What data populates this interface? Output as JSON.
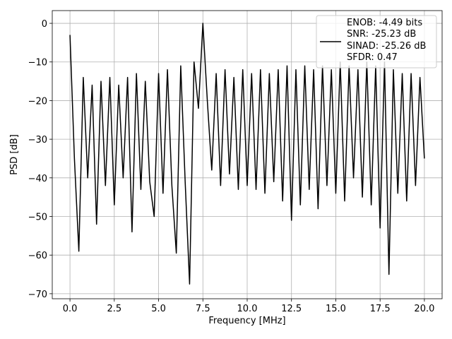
{
  "chart_data": {
    "type": "line",
    "xlabel": "Frequency [MHz]",
    "ylabel": "PSD [dB]",
    "xlim": [
      -1,
      21
    ],
    "ylim": [
      -71.3,
      3.3
    ],
    "xticks": [
      {
        "value": 0,
        "label": "0.0"
      },
      {
        "value": 2.5,
        "label": "2.5"
      },
      {
        "value": 5,
        "label": "5.0"
      },
      {
        "value": 7.5,
        "label": "7.5"
      },
      {
        "value": 10,
        "label": "10.0"
      },
      {
        "value": 12.5,
        "label": "12.5"
      },
      {
        "value": 15,
        "label": "15.0"
      },
      {
        "value": 17.5,
        "label": "17.5"
      },
      {
        "value": 20,
        "label": "20.0"
      }
    ],
    "yticks": [
      0,
      {
        "value": -10,
        "label": "−10"
      },
      {
        "value": -20,
        "label": "−20"
      },
      {
        "value": -30,
        "label": "−30"
      },
      {
        "value": -40,
        "label": "−40"
      },
      {
        "value": -50,
        "label": "−50"
      },
      {
        "value": -60,
        "label": "−60"
      },
      {
        "value": -70,
        "label": "−70"
      }
    ],
    "grid": true,
    "legend": "upper right",
    "x": [
      0,
      0.25,
      0.5,
      0.75,
      1,
      1.25,
      1.5,
      1.75,
      2,
      2.25,
      2.5,
      2.75,
      3,
      3.25,
      3.5,
      3.75,
      4,
      4.25,
      4.5,
      4.75,
      5,
      5.25,
      5.5,
      5.75,
      6,
      6.25,
      6.5,
      6.75,
      7,
      7.25,
      7.5,
      7.75,
      8,
      8.25,
      8.5,
      8.75,
      9,
      9.25,
      9.5,
      9.75,
      10,
      10.25,
      10.5,
      10.75,
      11,
      11.25,
      11.5,
      11.75,
      12,
      12.25,
      12.5,
      12.75,
      13,
      13.25,
      13.5,
      13.75,
      14,
      14.25,
      14.5,
      14.75,
      15,
      15.25,
      15.5,
      15.75,
      16,
      16.25,
      16.5,
      16.75,
      17,
      17.25,
      17.5,
      17.75,
      18,
      18.25,
      18.5,
      18.75,
      19,
      19.25,
      19.5,
      19.75,
      20
    ],
    "series": [
      {
        "name": "ENOB: -4.49 bits\nSNR: -25.23 dB\nSINAD: -25.26 dB\nSFDR: 0.47",
        "color": "#000000",
        "values": [
          -3,
          -35,
          -59,
          -14,
          -40,
          -16,
          -52,
          -15,
          -42,
          -14,
          -47,
          -16,
          -40,
          -14,
          -54,
          -13,
          -43,
          -15,
          -41,
          -50,
          -13,
          -44,
          -12,
          -42,
          -59.5,
          -11,
          -41,
          -67.5,
          -10,
          -22,
          0,
          -20,
          -38,
          -13,
          -42,
          -12,
          -39,
          -14,
          -43,
          -12,
          -42,
          -13,
          -43,
          -12,
          -44,
          -13,
          -41,
          -12,
          -46,
          -11,
          -51,
          -12,
          -47,
          -11,
          -43,
          -12,
          -48,
          -11,
          -42,
          -12,
          -44,
          -10,
          -46,
          -11,
          -40,
          -12,
          -45,
          -10,
          -47,
          -11,
          -53,
          -10,
          -65,
          -12,
          -44,
          -13,
          -46,
          -13,
          -42,
          -14,
          -35
        ]
      }
    ]
  }
}
